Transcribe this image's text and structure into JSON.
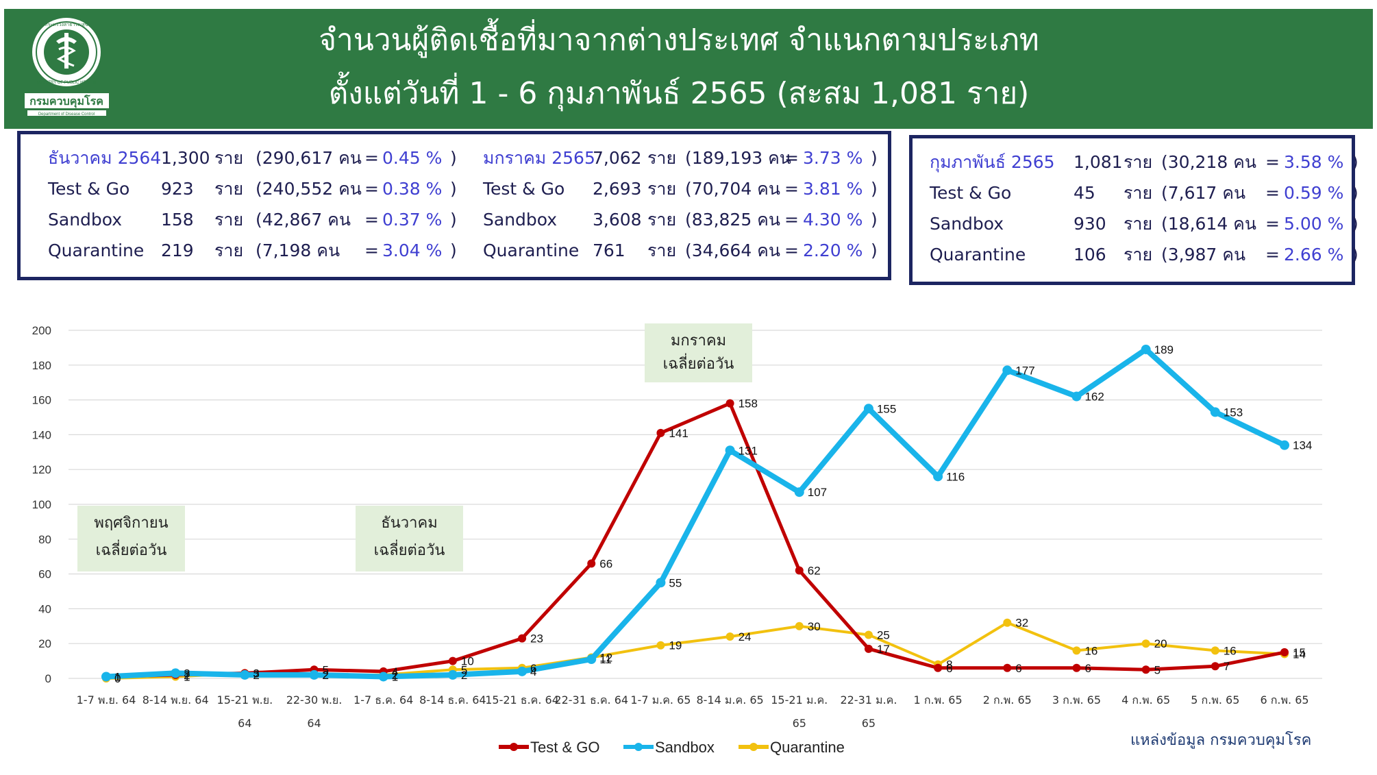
{
  "header": {
    "title_line1": "จำนวนผู้ติดเชื้อที่มาจากต่างประเทศ จำแนกตามประเภท",
    "title_line2": "ตั้งแต่วันที่  1 - 6  กุมภาพันธ์  2565 (สะสม 1,081 ราย)",
    "logo_text": "กรมควบคุมโรค",
    "logo_subtext": "Department of Disease Control",
    "logo_ring_text": "MINISTRY OF PUBLIC HEALTH",
    "logo_top_text": "กระทรวงสาธารณสุข"
  },
  "stats": {
    "december": {
      "rows": [
        {
          "label": "ธันวาคม 2564",
          "count": "1,300",
          "unit": "ราย",
          "people": "(290,617 คน",
          "eq": "=",
          "pct": "0.45 %",
          "close": ")"
        },
        {
          "label": "Test & Go",
          "count": "923",
          "unit": "ราย",
          "people": "(240,552 คน",
          "eq": "=",
          "pct": "0.38 %",
          "close": ")"
        },
        {
          "label": "Sandbox",
          "count": "158",
          "unit": "ราย",
          "people": "(42,867 คน",
          "eq": "=",
          "pct": "0.37 %",
          "close": ")"
        },
        {
          "label": "Quarantine",
          "count": "219",
          "unit": "ราย",
          "people": "(7,198 คน",
          "eq": "=",
          "pct": "3.04 %",
          "close": ")"
        }
      ]
    },
    "january": {
      "rows": [
        {
          "label": "มกราคม 2565",
          "count": "7,062",
          "unit": "ราย",
          "people": "(189,193 คน",
          "eq": "=",
          "pct": "3.73 %",
          "close": ")"
        },
        {
          "label": "Test & Go",
          "count": "2,693",
          "unit": "ราย",
          "people": "(70,704 คน",
          "eq": "=",
          "pct": "3.81 %",
          "close": ")"
        },
        {
          "label": "Sandbox",
          "count": "3,608",
          "unit": "ราย",
          "people": "(83,825 คน",
          "eq": "=",
          "pct": "4.30 %",
          "close": ")"
        },
        {
          "label": "Quarantine",
          "count": "761",
          "unit": "ราย",
          "people": "(34,664 คน",
          "eq": "=",
          "pct": "2.20 %",
          "close": ")"
        }
      ]
    },
    "february": {
      "rows": [
        {
          "label": "กุมภาพันธ์ 2565",
          "count": "1,081",
          "unit": "ราย",
          "people": "(30,218 คน",
          "eq": "=",
          "pct": "3.58 %",
          "close": ")"
        },
        {
          "label": "Test & Go",
          "count": "45",
          "unit": "ราย",
          "people": "(7,617 คน",
          "eq": "=",
          "pct": "0.59 %",
          "close": ")"
        },
        {
          "label": "Sandbox",
          "count": "930",
          "unit": "ราย",
          "people": "(18,614 คน",
          "eq": "=",
          "pct": "5.00 %",
          "close": ")"
        },
        {
          "label": "Quarantine",
          "count": "106",
          "unit": "ราย",
          "people": "(3,987 คน",
          "eq": "=",
          "pct": "2.66 %",
          "close": ")"
        }
      ]
    }
  },
  "chart_data": {
    "type": "line",
    "ylim": [
      0,
      200
    ],
    "yticks": [
      0,
      20,
      40,
      60,
      80,
      100,
      120,
      140,
      160,
      180,
      200
    ],
    "grid": true,
    "legend_position": "bottom",
    "categories": [
      [
        "1-7 พ.ย. 64"
      ],
      [
        "8-14 พ.ย. 64"
      ],
      [
        "15-21 พ.ย.",
        "64"
      ],
      [
        "22-30 พ.ย.",
        "64"
      ],
      [
        "1-7 ธ.ค. 64"
      ],
      [
        "8-14 ธ.ค. 64"
      ],
      [
        "15-21 ธ.ค. 64"
      ],
      [
        "22-31 ธ.ค. 64"
      ],
      [
        "1-7 ม.ค. 65"
      ],
      [
        "8-14 ม.ค. 65"
      ],
      [
        "15-21 ม.ค.",
        "65"
      ],
      [
        "22-31 ม.ค.",
        "65"
      ],
      [
        "1 ก.พ. 65"
      ],
      [
        "2 ก.พ. 65"
      ],
      [
        "3 ก.พ. 65"
      ],
      [
        "4 ก.พ. 65"
      ],
      [
        "5 ก.พ. 65"
      ],
      [
        "6 ก.พ. 65"
      ]
    ],
    "series": [
      {
        "name": "Test & GO",
        "color": "#c00000",
        "values": [
          1,
          2,
          3,
          5,
          4,
          10,
          23,
          66,
          141,
          158,
          62,
          17,
          6,
          6,
          6,
          5,
          7,
          15
        ]
      },
      {
        "name": "Sandbox",
        "color": "#19b4ea",
        "values": [
          1,
          3,
          2,
          2,
          1,
          2,
          4,
          11,
          55,
          131,
          107,
          155,
          116,
          177,
          162,
          189,
          153,
          134
        ]
      },
      {
        "name": "Quarantine",
        "color": "#f2c10f",
        "values": [
          0,
          1,
          3,
          2,
          2,
          5,
          6,
          12,
          19,
          24,
          30,
          25,
          8,
          32,
          16,
          20,
          16,
          14
        ]
      }
    ],
    "annotations": [
      {
        "lines": [
          "พฤศจิกายน",
          "เฉลี่ยต่อวัน"
        ]
      },
      {
        "lines": [
          "ธันวาคม",
          "เฉลี่ยต่อวัน"
        ]
      },
      {
        "lines": [
          "มกราคม",
          "เฉลี่ยต่อวัน"
        ]
      }
    ]
  },
  "source": "แหล่งข้อมูล กรมควบคุมโรค"
}
